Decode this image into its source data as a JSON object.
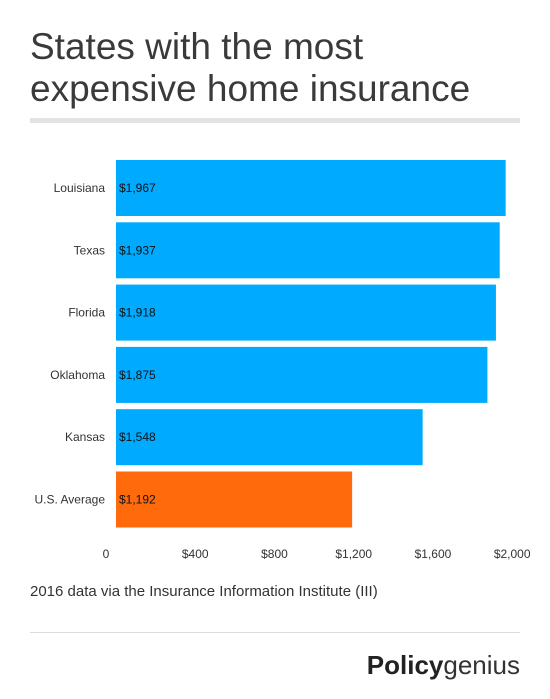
{
  "header": {
    "title_line1": "States with the most",
    "title_line2": "expensive home insurance"
  },
  "footer": {
    "source": "2016 data via the Insurance Information Institute (III)",
    "brand_bold": "Policy",
    "brand_light": "genius"
  },
  "colors": {
    "bar": "#00aaff",
    "highlight": "#ff6a0d",
    "label_text": "#111111",
    "axis_text": "#333333"
  },
  "chart_data": {
    "type": "bar",
    "orientation": "horizontal",
    "title": "States with the most expensive home insurance",
    "categories": [
      "Louisiana",
      "Texas",
      "Florida",
      "Oklahoma",
      "Kansas",
      "U.S. Average"
    ],
    "values": [
      1967,
      1937,
      1918,
      1875,
      1548,
      1192
    ],
    "data_labels": [
      "$1,967",
      "$1,937",
      "$1,918",
      "$1,875",
      "$1,548",
      "$1,192"
    ],
    "highlight_category": "U.S. Average",
    "xlim": [
      0,
      2100
    ],
    "xticks": [
      0,
      400,
      800,
      1200,
      1600,
      2000
    ],
    "xtick_labels": [
      "0",
      "$400",
      "$800",
      "$1,200",
      "$1,600",
      "$2,000"
    ],
    "xlabel": "",
    "ylabel": "",
    "grid": false,
    "legend": "none"
  }
}
